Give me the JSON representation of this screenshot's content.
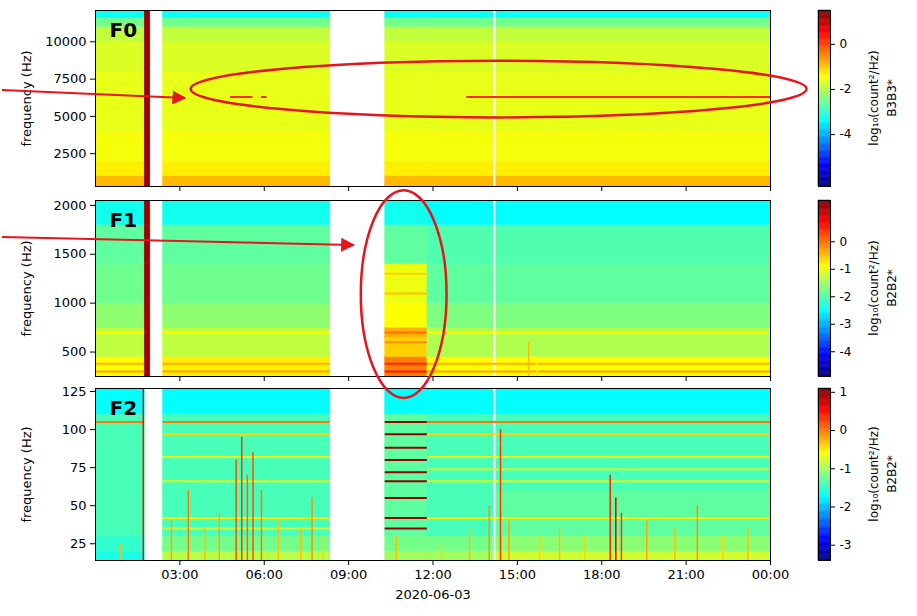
{
  "chart_data": {
    "type": "spectrogram",
    "xlabel": "2020-06-03",
    "xlim": [
      0,
      24
    ],
    "xticks": [
      {
        "value": 3,
        "label": "03:00"
      },
      {
        "value": 6,
        "label": "06:00"
      },
      {
        "value": 9,
        "label": "09:00"
      },
      {
        "value": 12,
        "label": "12:00"
      },
      {
        "value": 15,
        "label": "15:00"
      },
      {
        "value": 18,
        "label": "18:00"
      },
      {
        "value": 21,
        "label": "21:00"
      },
      {
        "value": 24,
        "label": "00:00"
      }
    ],
    "time_edges": [
      0,
      1.75,
      1.95,
      2.4,
      8.35,
      10.3,
      11.8,
      14.15,
      14.25,
      24
    ],
    "panels": [
      {
        "label": "F0",
        "ylabel": "frequency (Hz)",
        "ylim": [
          300,
          12100
        ],
        "yticks": [
          2500,
          5000,
          7500,
          10000
        ],
        "colorbar": {
          "label": "log₁₀(count²/Hz)",
          "sublabel": "B3B3*",
          "range": [
            -6.3,
            1.5
          ],
          "ticks": [
            0,
            -2,
            -4
          ]
        },
        "frequency_edges": [
          300,
          1000,
          2000,
          4000,
          6000,
          8000,
          10000,
          11000,
          11600,
          12100
        ],
        "values": [
          [
            -0.9,
            1.3,
            null,
            -0.9,
            null,
            -0.9,
            -0.9,
            null,
            -0.9
          ],
          [
            -1.3,
            1.3,
            null,
            -1.3,
            null,
            -1.3,
            -1.3,
            null,
            -1.3
          ],
          [
            -1.5,
            1.3,
            null,
            -1.5,
            null,
            -1.5,
            -1.5,
            null,
            -1.5
          ],
          [
            -1.6,
            1.3,
            null,
            -1.6,
            null,
            -1.6,
            -1.6,
            null,
            -1.6
          ],
          [
            -1.6,
            1.3,
            null,
            -1.6,
            null,
            -1.6,
            -1.6,
            null,
            -1.6
          ],
          [
            -1.7,
            1.3,
            null,
            -1.7,
            null,
            -1.7,
            -1.7,
            null,
            -1.7
          ],
          [
            -1.9,
            1.3,
            null,
            -1.9,
            null,
            -1.9,
            -1.9,
            null,
            -1.9
          ],
          [
            -2.5,
            1.3,
            null,
            -2.5,
            null,
            -2.5,
            -2.5,
            null,
            -2.5
          ],
          [
            -3.3,
            1.3,
            null,
            -3.3,
            null,
            -3.3,
            -3.3,
            null,
            -3.3
          ]
        ],
        "lines": [
          {
            "frequency": 6300,
            "value": 0.2,
            "spans": [
              [
                4.8,
                5.6
              ],
              [
                5.9,
                6.1
              ],
              [
                13.2,
                24
              ]
            ]
          }
        ],
        "bursts": [],
        "highlight": {
          "x": [
            3.4,
            25.3
          ],
          "y": [
            4900,
            8700
          ],
          "arrow_to": [
            3.2,
            6200
          ]
        }
      },
      {
        "label": "F1",
        "ylabel": "frequency (Hz)",
        "ylim": [
          250,
          2050
        ],
        "yticks": [
          500,
          1000,
          1500,
          2000
        ],
        "colorbar": {
          "label": "log₁₀(count²/Hz)",
          "sublabel": "B2B2*",
          "range": [
            -4.9,
            1.5
          ],
          "ticks": [
            0,
            -1,
            -2,
            -3,
            -4
          ]
        },
        "frequency_edges": [
          250,
          450,
          650,
          750,
          1000,
          1400,
          1800,
          2050
        ],
        "values": [
          [
            -0.9,
            1.3,
            null,
            -0.8,
            null,
            -0.1,
            -0.9,
            null,
            -0.9
          ],
          [
            -1.3,
            1.3,
            null,
            -1.3,
            null,
            -0.6,
            -1.4,
            null,
            -1.4
          ],
          [
            -1.3,
            1.3,
            null,
            -1.3,
            null,
            -0.4,
            -1.4,
            null,
            -1.4
          ],
          [
            -1.6,
            1.3,
            null,
            -1.6,
            null,
            -0.9,
            -1.7,
            null,
            -1.7
          ],
          [
            -1.8,
            1.3,
            null,
            -1.8,
            null,
            -1.0,
            -1.9,
            null,
            -1.9
          ],
          [
            -1.9,
            1.3,
            null,
            -1.9,
            null,
            -1.9,
            -2.0,
            null,
            -2.0
          ],
          [
            -2.4,
            1.3,
            null,
            -2.4,
            null,
            -2.4,
            -2.5,
            null,
            -2.5
          ]
        ],
        "lines": [
          {
            "frequency": 700,
            "value": -0.9,
            "spans": [
              [
                0,
                1.75
              ],
              [
                2.4,
                8.35
              ],
              [
                11.8,
                24
              ]
            ]
          },
          {
            "frequency": 300,
            "value": -0.3,
            "spans": [
              [
                0,
                1.75
              ],
              [
                2.4,
                8.35
              ],
              [
                11.8,
                24
              ]
            ]
          },
          {
            "frequency": 380,
            "value": -0.4,
            "spans": [
              [
                0,
                1.75
              ],
              [
                2.4,
                8.35
              ],
              [
                11.8,
                24
              ]
            ]
          },
          {
            "frequency": 700,
            "value": 0.0,
            "spans": [
              [
                10.3,
                11.8
              ]
            ]
          },
          {
            "frequency": 600,
            "value": -0.2,
            "spans": [
              [
                10.3,
                11.8
              ]
            ]
          },
          {
            "frequency": 1100,
            "value": -0.5,
            "spans": [
              [
                10.3,
                11.8
              ]
            ]
          },
          {
            "frequency": 1300,
            "value": -0.6,
            "spans": [
              [
                10.3,
                11.8
              ]
            ]
          },
          {
            "frequency": 300,
            "value": 0.6,
            "spans": [
              [
                10.3,
                11.8
              ]
            ]
          },
          {
            "frequency": 380,
            "value": 0.5,
            "spans": [
              [
                10.3,
                11.8
              ]
            ]
          }
        ],
        "bursts": [
          {
            "time": 15.4,
            "top_frequency": 600,
            "value": -0.5
          },
          {
            "time": 15.7,
            "top_frequency": 450,
            "value": -0.8
          }
        ],
        "highlight": {
          "x": [
            9.45,
            12.5
          ],
          "y": [
            25,
            2150
          ],
          "arrow_to": [
            9.2,
            1590
          ]
        }
      },
      {
        "label": "F2",
        "ylabel": "frequency (Hz)",
        "ylim": [
          14,
          127
        ],
        "yticks": [
          25,
          50,
          75,
          100,
          125
        ],
        "colorbar": {
          "label": "log₁₀(count²/Hz)",
          "sublabel": "B2B2*",
          "range": [
            -3.4,
            1.1
          ],
          "ticks": [
            1,
            0,
            -1,
            -2,
            -3
          ]
        },
        "frequency_edges": [
          14,
          20,
          30,
          60,
          90,
          110,
          127
        ],
        "values": [
          [
            -1.6,
            null,
            null,
            -0.9,
            null,
            -1.0,
            -1.0,
            null,
            -0.8
          ],
          [
            -1.5,
            null,
            null,
            -1.2,
            null,
            -1.2,
            -1.2,
            null,
            -1.1
          ],
          [
            -1.4,
            null,
            null,
            -1.4,
            null,
            -1.3,
            -1.4,
            null,
            -1.3
          ],
          [
            -1.4,
            null,
            null,
            -1.4,
            null,
            -1.3,
            -1.4,
            null,
            -1.4
          ],
          [
            -1.4,
            null,
            null,
            -1.4,
            null,
            -1.3,
            -1.4,
            null,
            -1.4
          ],
          [
            -1.7,
            null,
            null,
            -1.7,
            null,
            -1.7,
            -1.7,
            null,
            -1.7
          ]
        ],
        "lines": [
          {
            "frequency": 105,
            "value": 0.0,
            "spans": [
              [
                0,
                1.75
              ],
              [
                2.4,
                8.35
              ],
              [
                11.8,
                24
              ]
            ]
          },
          {
            "frequency": 97,
            "value": -0.4,
            "spans": [
              [
                2.4,
                8.35
              ],
              [
                11.8,
                24
              ]
            ]
          },
          {
            "frequency": 82,
            "value": -0.7,
            "spans": [
              [
                2.4,
                8.35
              ],
              [
                11.8,
                24
              ]
            ]
          },
          {
            "frequency": 74,
            "value": -0.8,
            "spans": [
              [
                11.8,
                24
              ]
            ]
          },
          {
            "frequency": 66,
            "value": -0.7,
            "spans": [
              [
                2.4,
                8.35
              ],
              [
                11.8,
                24
              ]
            ]
          },
          {
            "frequency": 42,
            "value": -0.6,
            "spans": [
              [
                2.4,
                8.35
              ],
              [
                11.8,
                24
              ]
            ]
          },
          {
            "frequency": 35,
            "value": -0.8,
            "spans": [
              [
                2.4,
                8.35
              ]
            ]
          },
          {
            "frequency": 105,
            "value": 1.0,
            "spans": [
              [
                10.3,
                11.8
              ]
            ]
          },
          {
            "frequency": 97,
            "value": 1.0,
            "spans": [
              [
                10.3,
                11.8
              ]
            ]
          },
          {
            "frequency": 88,
            "value": 1.0,
            "spans": [
              [
                10.3,
                11.8
              ]
            ]
          },
          {
            "frequency": 80,
            "value": 1.0,
            "spans": [
              [
                10.3,
                11.8
              ]
            ]
          },
          {
            "frequency": 72,
            "value": 1.0,
            "spans": [
              [
                10.3,
                11.8
              ]
            ]
          },
          {
            "frequency": 66,
            "value": 1.0,
            "spans": [
              [
                10.3,
                11.8
              ]
            ]
          },
          {
            "frequency": 55,
            "value": 1.0,
            "spans": [
              [
                10.3,
                11.8
              ]
            ]
          },
          {
            "frequency": 42,
            "value": 1.0,
            "spans": [
              [
                10.3,
                11.8
              ]
            ]
          },
          {
            "frequency": 35,
            "value": 1.0,
            "spans": [
              [
                10.3,
                11.8
              ]
            ]
          }
        ],
        "bursts": [
          {
            "time": 0.9,
            "top_frequency": 25,
            "value": -0.3
          },
          {
            "time": 1.7,
            "top_frequency": 127,
            "value": 0.5
          },
          {
            "time": 2.7,
            "top_frequency": 40,
            "value": -0.2
          },
          {
            "time": 3.3,
            "top_frequency": 60,
            "value": 0.0
          },
          {
            "time": 3.9,
            "top_frequency": 35,
            "value": -0.3
          },
          {
            "time": 4.4,
            "top_frequency": 45,
            "value": -0.2
          },
          {
            "time": 5.0,
            "top_frequency": 80,
            "value": 0.2
          },
          {
            "time": 5.2,
            "top_frequency": 95,
            "value": 0.3
          },
          {
            "time": 5.4,
            "top_frequency": 70,
            "value": 0.1
          },
          {
            "time": 5.6,
            "top_frequency": 85,
            "value": 0.2
          },
          {
            "time": 5.9,
            "top_frequency": 60,
            "value": 0.0
          },
          {
            "time": 6.5,
            "top_frequency": 40,
            "value": -0.3
          },
          {
            "time": 7.3,
            "top_frequency": 35,
            "value": -0.3
          },
          {
            "time": 7.7,
            "top_frequency": 55,
            "value": -0.1
          },
          {
            "time": 8.1,
            "top_frequency": 30,
            "value": -0.4
          },
          {
            "time": 10.7,
            "top_frequency": 30,
            "value": -0.3
          },
          {
            "time": 12.3,
            "top_frequency": 25,
            "value": -0.4
          },
          {
            "time": 13.3,
            "top_frequency": 35,
            "value": -0.3
          },
          {
            "time": 14.0,
            "top_frequency": 50,
            "value": -0.1
          },
          {
            "time": 14.4,
            "top_frequency": 100,
            "value": 0.3
          },
          {
            "time": 14.7,
            "top_frequency": 40,
            "value": -0.2
          },
          {
            "time": 15.8,
            "top_frequency": 30,
            "value": -0.4
          },
          {
            "time": 16.5,
            "top_frequency": 35,
            "value": -0.3
          },
          {
            "time": 17.4,
            "top_frequency": 30,
            "value": -0.4
          },
          {
            "time": 18.3,
            "top_frequency": 70,
            "value": 0.4
          },
          {
            "time": 18.5,
            "top_frequency": 55,
            "value": 0.6
          },
          {
            "time": 18.7,
            "top_frequency": 45,
            "value": 0.3
          },
          {
            "time": 19.6,
            "top_frequency": 40,
            "value": -0.2
          },
          {
            "time": 20.6,
            "top_frequency": 35,
            "value": -0.3
          },
          {
            "time": 21.4,
            "top_frequency": 50,
            "value": -0.1
          },
          {
            "time": 22.3,
            "top_frequency": 30,
            "value": -0.4
          },
          {
            "time": 23.2,
            "top_frequency": 35,
            "value": -0.3
          }
        ]
      }
    ]
  }
}
